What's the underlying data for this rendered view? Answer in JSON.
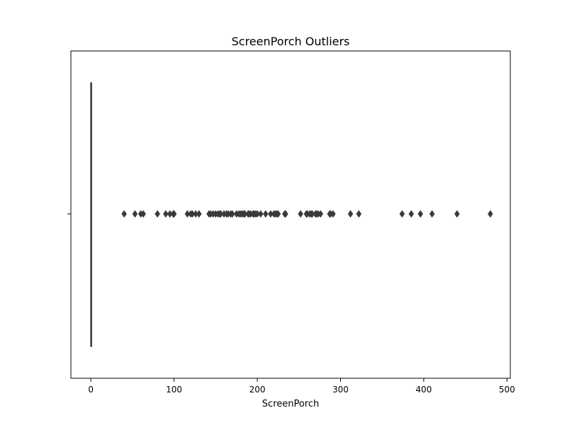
{
  "chart_data": {
    "type": "box",
    "title": "ScreenPorch Outliers",
    "xlabel": "ScreenPorch",
    "ylabel": "",
    "xlim": [
      -24,
      504
    ],
    "xticks": [
      0,
      100,
      200,
      300,
      400,
      500
    ],
    "box": {
      "min": 0,
      "q1": 0,
      "median": 0,
      "q3": 0,
      "max": 0
    },
    "outliers": [
      40,
      53,
      60,
      63,
      80,
      90,
      95,
      99,
      100,
      116,
      120,
      122,
      126,
      130,
      142,
      144,
      147,
      150,
      153,
      155,
      156,
      160,
      163,
      165,
      168,
      170,
      175,
      178,
      180,
      182,
      184,
      185,
      189,
      190,
      192,
      195,
      196,
      198,
      200,
      204,
      210,
      216,
      220,
      222,
      224,
      225,
      233,
      234,
      252,
      259,
      260,
      263,
      265,
      266,
      270,
      271,
      273,
      276,
      287,
      288,
      291,
      312,
      322,
      374,
      385,
      396,
      410,
      440,
      480
    ],
    "color": "#3a3a3a"
  }
}
